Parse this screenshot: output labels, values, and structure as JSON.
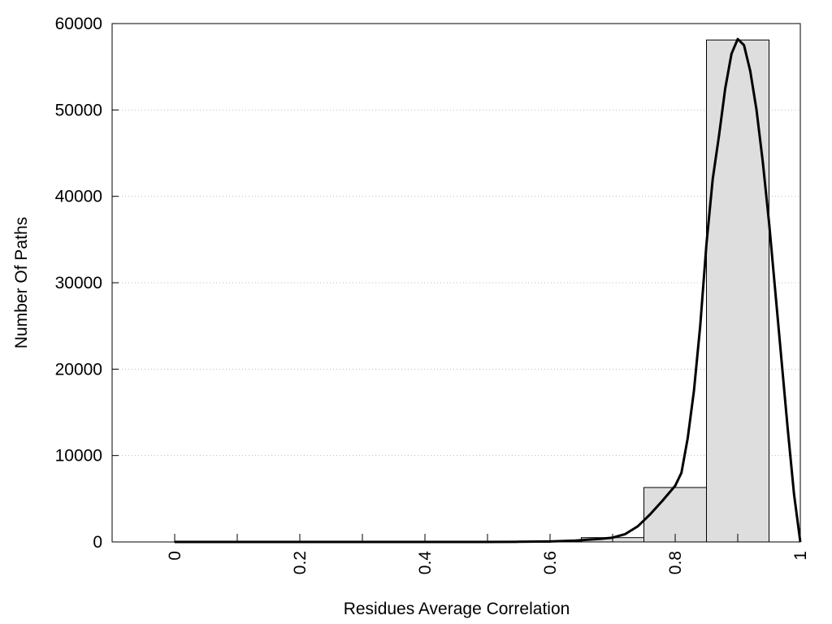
{
  "chart_data": {
    "type": "bar",
    "xlabel": "Residues Average Correlation",
    "ylabel": "Number Of Paths",
    "xlim": [
      -0.1,
      1.0
    ],
    "ylim": [
      0,
      60000
    ],
    "x_ticks": [
      0,
      0.2,
      0.4,
      0.6,
      0.8,
      1
    ],
    "x_tick_labels": [
      "0",
      "0.2",
      "0.4",
      "0.6",
      "0.8",
      "1"
    ],
    "x_minor_ticks": [
      0.1,
      0.3,
      0.5,
      0.7,
      0.9
    ],
    "y_ticks": [
      0,
      10000,
      20000,
      30000,
      40000,
      50000,
      60000
    ],
    "y_tick_labels": [
      "0",
      "10000",
      "20000",
      "30000",
      "40000",
      "50000",
      "60000"
    ],
    "grid": "horizontal-dotted",
    "bars": [
      {
        "x_start": 0.0,
        "x_end": 0.1,
        "value": 0
      },
      {
        "x_start": 0.1,
        "x_end": 0.2,
        "value": 0
      },
      {
        "x_start": 0.2,
        "x_end": 0.3,
        "value": 0
      },
      {
        "x_start": 0.3,
        "x_end": 0.4,
        "value": 0
      },
      {
        "x_start": 0.4,
        "x_end": 0.5,
        "value": 0
      },
      {
        "x_start": 0.5,
        "x_end": 0.6,
        "value": 10
      },
      {
        "x_start": 0.6,
        "x_end": 0.7,
        "value": 80
      },
      {
        "x_start": 0.65,
        "x_end": 0.75,
        "value": 500
      },
      {
        "x_start": 0.75,
        "x_end": 0.85,
        "value": 6300
      },
      {
        "x_start": 0.85,
        "x_end": 0.95,
        "value": 58100
      }
    ],
    "fit_curve": {
      "x": [
        0.0,
        0.5,
        0.55,
        0.6,
        0.62,
        0.64,
        0.66,
        0.68,
        0.7,
        0.72,
        0.74,
        0.76,
        0.78,
        0.8,
        0.81,
        0.82,
        0.83,
        0.84,
        0.85,
        0.86,
        0.87,
        0.88,
        0.89,
        0.9,
        0.91,
        0.92,
        0.93,
        0.94,
        0.95,
        0.96,
        0.97,
        0.98,
        0.99,
        1.0
      ],
      "y": [
        0,
        0,
        20,
        60,
        100,
        150,
        250,
        350,
        500,
        900,
        1800,
        3200,
        4800,
        6500,
        8000,
        12000,
        17500,
        25000,
        34500,
        42000,
        47000,
        52500,
        56500,
        58200,
        57500,
        54500,
        50000,
        44000,
        37000,
        29000,
        21000,
        13000,
        5500,
        0
      ]
    },
    "colors": {
      "bar_fill": "#dedede",
      "bar_stroke": "#000000",
      "curve": "#000000",
      "grid": "#bbbbbb"
    }
  }
}
